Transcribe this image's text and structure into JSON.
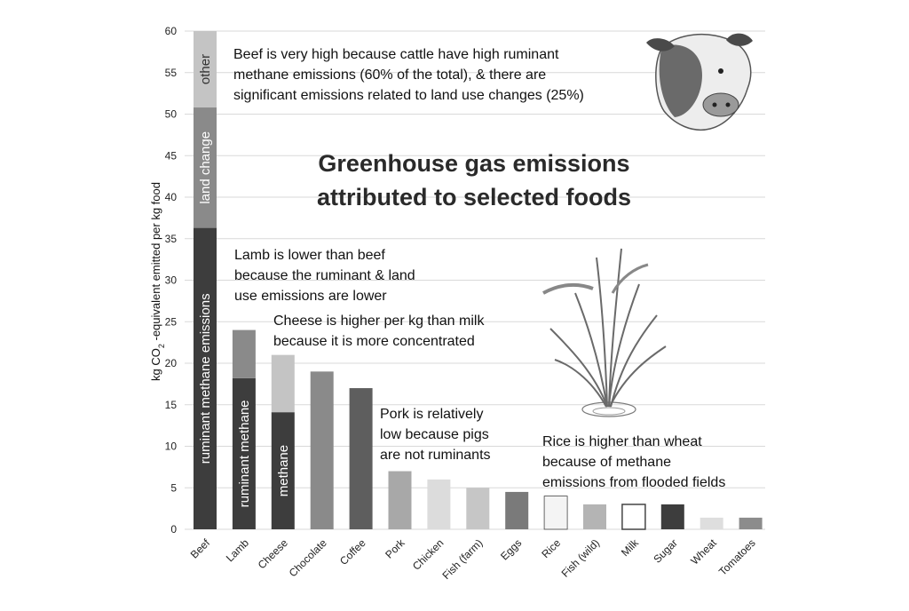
{
  "chart_data": {
    "type": "bar",
    "title_lines": [
      "Greenhouse gas emissions",
      "attributed to selected foods"
    ],
    "ylabel_pre": "kg CO",
    "ylabel_sub": "2",
    "ylabel_post": " -equivalent emitted per kg food",
    "ylim": [
      0,
      60
    ],
    "yticks": [
      "0",
      "5",
      "10",
      "15",
      "20",
      "25",
      "30",
      "35",
      "40",
      "45",
      "50",
      "55",
      "60"
    ],
    "grid": true,
    "categories": [
      "Beef",
      "Lamb",
      "Cheese",
      "Chocolate",
      "Coffee",
      "Pork",
      "Chicken",
      "Fish (farm)",
      "Eggs",
      "Rice",
      "Fish (wild)",
      "Milk",
      "Sugar",
      "Wheat",
      "Tomatoes"
    ],
    "values": [
      60,
      24,
      21,
      19,
      17,
      7,
      6,
      5,
      4.5,
      4,
      3,
      3,
      3,
      1.4,
      1.4
    ],
    "stacks": [
      {
        "category": "Beef",
        "segments": [
          {
            "label": "ruminant methane emissions",
            "value": 36.3,
            "color": "#3d3d3d"
          },
          {
            "label": "land change",
            "value": 14.5,
            "color": "#8a8a8a"
          },
          {
            "label": "other",
            "value": 9.2,
            "color": "#c4c4c4"
          }
        ]
      },
      {
        "category": "Lamb",
        "segments": [
          {
            "label": "ruminant methane",
            "value": 18.2,
            "color": "#3d3d3d"
          },
          {
            "label": "",
            "value": 5.8,
            "color": "#8a8a8a"
          }
        ]
      },
      {
        "category": "Cheese",
        "segments": [
          {
            "label": "methane",
            "value": 14.1,
            "color": "#3d3d3d"
          },
          {
            "label": "",
            "value": 6.9,
            "color": "#c4c4c4"
          }
        ]
      }
    ],
    "bar_colors": {
      "Chocolate": "#8a8a8a",
      "Coffee": "#5e5e5e",
      "Pork": "#a8a8a8",
      "Chicken": "#dcdcdc",
      "Fish (farm)": "#c6c6c6",
      "Eggs": "#7a7a7a",
      "Rice": "#f4f4f4",
      "Fish (wild)": "#b4b4b4",
      "Milk": "#ffffff",
      "Sugar": "#3d3d3d",
      "Wheat": "#dedede",
      "Tomatoes": "#8c8c8c"
    },
    "annotations": [
      {
        "name": "beef-note",
        "lines": [
          "Beef is very high because cattle have high ruminant",
          "methane emissions (60% of the total), & there are",
          "significant emissions related to land use changes (25%)"
        ]
      },
      {
        "name": "lamb-note",
        "lines": [
          "Lamb is lower than beef",
          "because the ruminant & land",
          "use emissions are lower"
        ]
      },
      {
        "name": "cheese-note",
        "lines": [
          "Cheese is higher per kg than milk",
          "because it is more concentrated"
        ]
      },
      {
        "name": "pork-note",
        "lines": [
          "Pork is relatively",
          "low because pigs",
          "are not ruminants"
        ]
      },
      {
        "name": "rice-note",
        "lines": [
          "Rice is higher than wheat",
          "because of methane",
          "emissions from flooded fields"
        ]
      }
    ]
  }
}
